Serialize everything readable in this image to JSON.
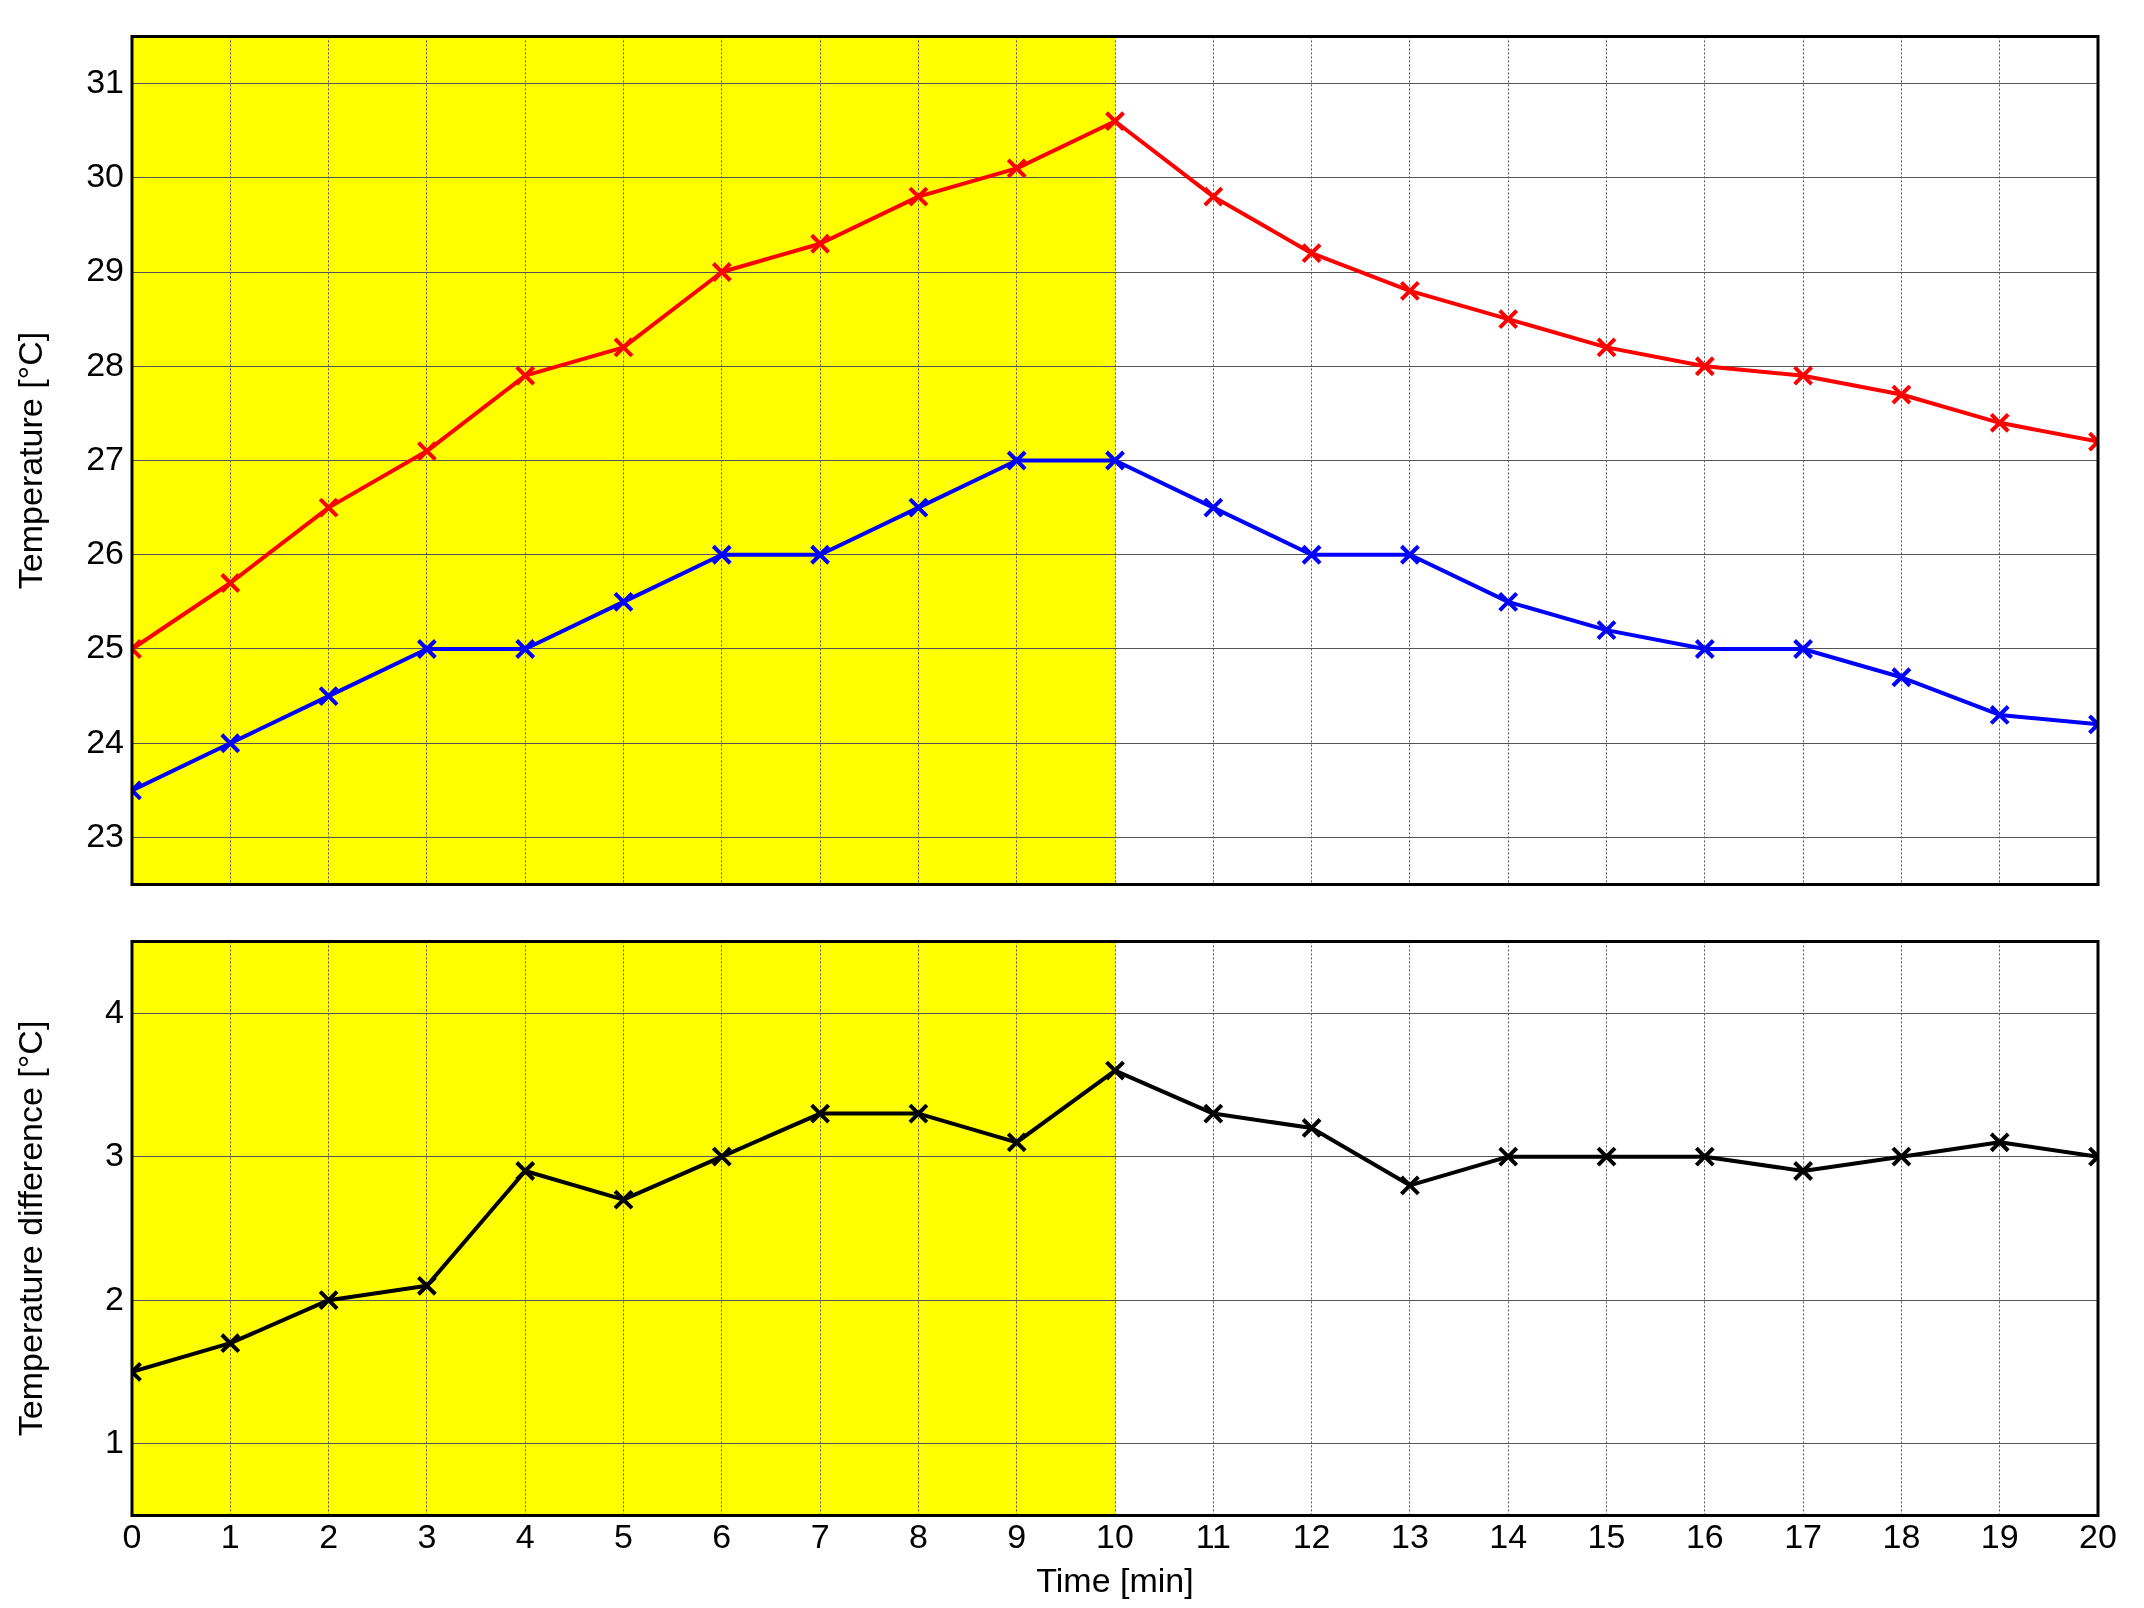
{
  "chart_data": [
    {
      "type": "line",
      "ylabel": "Temperature [°C]",
      "x": [
        0,
        1,
        2,
        3,
        4,
        5,
        6,
        7,
        8,
        9,
        10,
        11,
        12,
        13,
        14,
        15,
        16,
        17,
        18,
        19,
        20
      ],
      "series": [
        {
          "color": "#ff0000",
          "values": [
            25,
            25.7,
            26.5,
            27.1,
            27.9,
            28.2,
            29,
            29.3,
            29.8,
            30.1,
            30.6,
            29.8,
            29.2,
            28.8,
            28.5,
            28.2,
            28,
            27.9,
            27.7,
            27.4,
            27.2
          ]
        },
        {
          "color": "#0000ff",
          "values": [
            23.5,
            24,
            24.5,
            25,
            25,
            25.5,
            26,
            26,
            26.5,
            27,
            27,
            26.5,
            26,
            26,
            25.5,
            25.2,
            25,
            25,
            24.7,
            24.3,
            24.2
          ]
        }
      ],
      "xlim": [
        0,
        20
      ],
      "xticks": [
        0,
        1,
        2,
        3,
        4,
        5,
        6,
        7,
        8,
        9,
        10,
        11,
        12,
        13,
        14,
        15,
        16,
        17,
        18,
        19,
        20
      ],
      "ylim": [
        22.5,
        31.5
      ],
      "yticks": [
        23,
        24,
        25,
        26,
        27,
        28,
        29,
        30,
        31
      ],
      "bands": [
        {
          "axis": "x",
          "from": 0,
          "to": 10,
          "color": "#ffff00"
        }
      ],
      "grid": true,
      "legend": false,
      "marker": "cross",
      "line_style": "solid",
      "tick_labels": "y"
    },
    {
      "type": "line",
      "xlabel": "Time [min]",
      "ylabel": "Temperature difference [°C]",
      "x": [
        0,
        1,
        2,
        3,
        4,
        5,
        6,
        7,
        8,
        9,
        10,
        11,
        12,
        13,
        14,
        15,
        16,
        17,
        18,
        19,
        20
      ],
      "series": [
        {
          "color": "#000000",
          "values": [
            1.5,
            1.7,
            2,
            2.1,
            2.9,
            2.7,
            3,
            3.3,
            3.3,
            3.1,
            3.6,
            3.3,
            3.2,
            2.8,
            3,
            3,
            3,
            2.9,
            3,
            3.1,
            3
          ]
        }
      ],
      "xlim": [
        0,
        20
      ],
      "xticks": [
        0,
        1,
        2,
        3,
        4,
        5,
        6,
        7,
        8,
        9,
        10,
        11,
        12,
        13,
        14,
        15,
        16,
        17,
        18,
        19,
        20
      ],
      "ylim": [
        0.5,
        4.5
      ],
      "yticks": [
        1,
        2,
        3,
        4
      ],
      "bands": [
        {
          "axis": "x",
          "from": 0,
          "to": 10,
          "color": "#ffff00"
        }
      ],
      "grid": true,
      "legend": false,
      "marker": "cross",
      "line_style": "solid"
    }
  ]
}
